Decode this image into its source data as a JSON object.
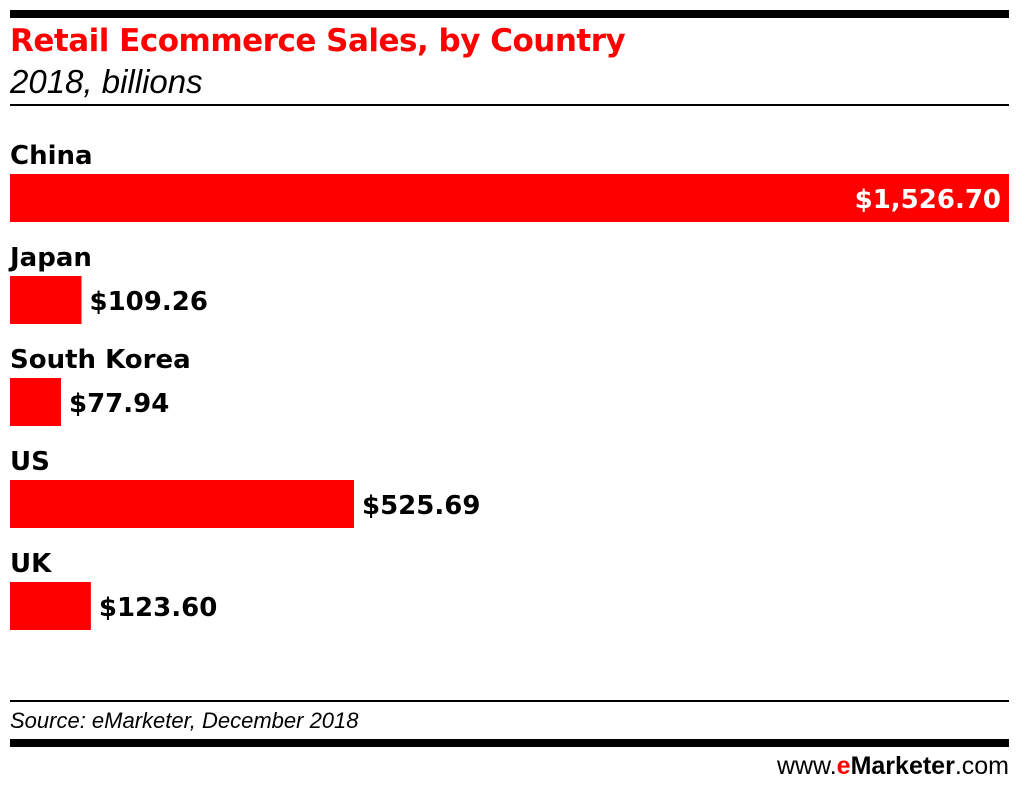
{
  "header": {
    "title": "Retail Ecommerce Sales, by Country",
    "subtitle": "2018, billions"
  },
  "footer": {
    "source": "Source: eMarketer, December 2018",
    "brand_prefix": "www.",
    "brand_e": "e",
    "brand_name": "Marketer",
    "brand_suffix": ".com"
  },
  "colors": {
    "bar": "#ff0000",
    "text": "#000000",
    "inside_label": "#ffffff"
  },
  "chart_data": {
    "type": "bar",
    "orientation": "horizontal",
    "title": "Retail Ecommerce Sales, by Country",
    "subtitle": "2018, billions",
    "categories": [
      "China",
      "Japan",
      "South Korea",
      "US",
      "UK"
    ],
    "values": [
      1526.7,
      109.26,
      77.94,
      525.69,
      123.6
    ],
    "value_labels": [
      "$1,526.70",
      "$109.26",
      "$77.94",
      "$525.69",
      "$123.60"
    ],
    "xlim": [
      0,
      1526.7
    ],
    "grid": false,
    "legend": "none"
  }
}
